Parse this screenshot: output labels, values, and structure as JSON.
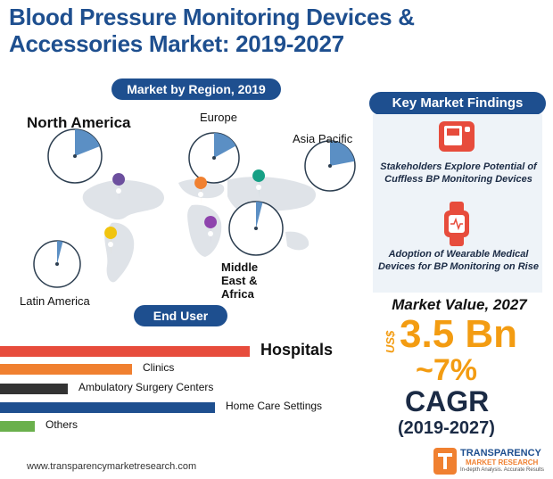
{
  "title": "Blood Pressure Monitoring Devices & Accessories Market: 2019-2027",
  "region_section": {
    "label": "Market by Region, 2019",
    "regions": [
      {
        "name": "North America",
        "share": 0.19
      },
      {
        "name": "Europe",
        "share": 0.17
      },
      {
        "name": "Asia Pacific",
        "share": 0.22
      },
      {
        "name": "Middle East & Africa",
        "share": 0.04
      },
      {
        "name": "Latin America",
        "share": 0.04
      }
    ]
  },
  "end_user": {
    "label": "End User",
    "items": [
      {
        "name": "Hospitals",
        "value": 1.0,
        "color": "#e74c3c"
      },
      {
        "name": "Clinics",
        "value": 0.53,
        "color": "#f08030"
      },
      {
        "name": "Ambulatory Surgery Centers",
        "value": 0.27,
        "color": "#333333"
      },
      {
        "name": "Home Care Settings",
        "value": 0.86,
        "color": "#1e4f8f"
      },
      {
        "name": "Others",
        "value": 0.14,
        "color": "#6ab04c"
      }
    ]
  },
  "key_findings": {
    "label": "Key Market Findings",
    "items": [
      {
        "text": "Stakeholders Explore Potential of Cuffless BP Monitoring Devices",
        "icon": "bp-monitor-icon"
      },
      {
        "text": "Adoption of Wearable Medical Devices for BP Monitoring on Rise",
        "icon": "smartwatch-icon"
      }
    ]
  },
  "market_value": {
    "label": "Market Value, 2027",
    "currency": "US$",
    "value": "3.5 Bn",
    "cagr_value": "~7%",
    "cagr_label": "CAGR",
    "cagr_period": "(2019-2027)"
  },
  "footer": {
    "url": "www.transparencymarketresearch.com",
    "logo_line1": "TRANSPARENCY",
    "logo_line2": "MARKET RESEARCH",
    "logo_tagline": "In-depth Analysis. Accurate Results"
  },
  "colors": {
    "brand_blue": "#1e4f8f",
    "accent_orange": "#f39c12",
    "pie_fill": "#5b8fc4"
  }
}
